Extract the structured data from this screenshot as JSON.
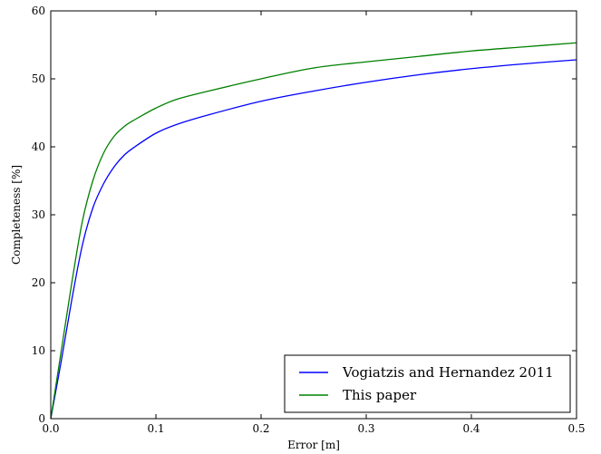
{
  "chart_data": {
    "type": "line",
    "xlabel": "Error [m]",
    "ylabel": "Completeness [%]",
    "xlim": [
      0,
      0.5
    ],
    "ylim": [
      0,
      60
    ],
    "xticks": [
      0.0,
      0.1,
      0.2,
      0.3,
      0.4,
      0.5
    ],
    "xtick_labels": [
      "0.0",
      "0.1",
      "0.2",
      "0.3",
      "0.4",
      "0.5"
    ],
    "yticks": [
      0,
      10,
      20,
      30,
      40,
      50,
      60
    ],
    "ytick_labels": [
      "0",
      "10",
      "20",
      "30",
      "40",
      "50",
      "60"
    ],
    "grid": false,
    "legend_position": "bottom-right",
    "series": [
      {
        "name": "Vogiatzis and Hernandez 2011",
        "color": "#0000ff",
        "x": [
          0,
          0.01,
          0.02,
          0.03,
          0.04,
          0.05,
          0.06,
          0.07,
          0.08,
          0.1,
          0.12,
          0.15,
          0.2,
          0.25,
          0.3,
          0.35,
          0.4,
          0.45,
          0.5
        ],
        "y": [
          0,
          8.5,
          17.5,
          25.5,
          31,
          34.5,
          37,
          38.8,
          40,
          42,
          43.3,
          44.7,
          46.7,
          48.2,
          49.5,
          50.6,
          51.5,
          52.2,
          52.8
        ]
      },
      {
        "name": "This paper",
        "color": "#008000",
        "x": [
          0,
          0.01,
          0.02,
          0.03,
          0.04,
          0.05,
          0.06,
          0.07,
          0.08,
          0.1,
          0.12,
          0.15,
          0.2,
          0.25,
          0.3,
          0.35,
          0.4,
          0.45,
          0.5
        ],
        "y": [
          0,
          10,
          20,
          29,
          35,
          39,
          41.5,
          43,
          44,
          45.7,
          47,
          48.2,
          50,
          51.6,
          52.5,
          53.3,
          54.1,
          54.7,
          55.3
        ]
      }
    ]
  }
}
